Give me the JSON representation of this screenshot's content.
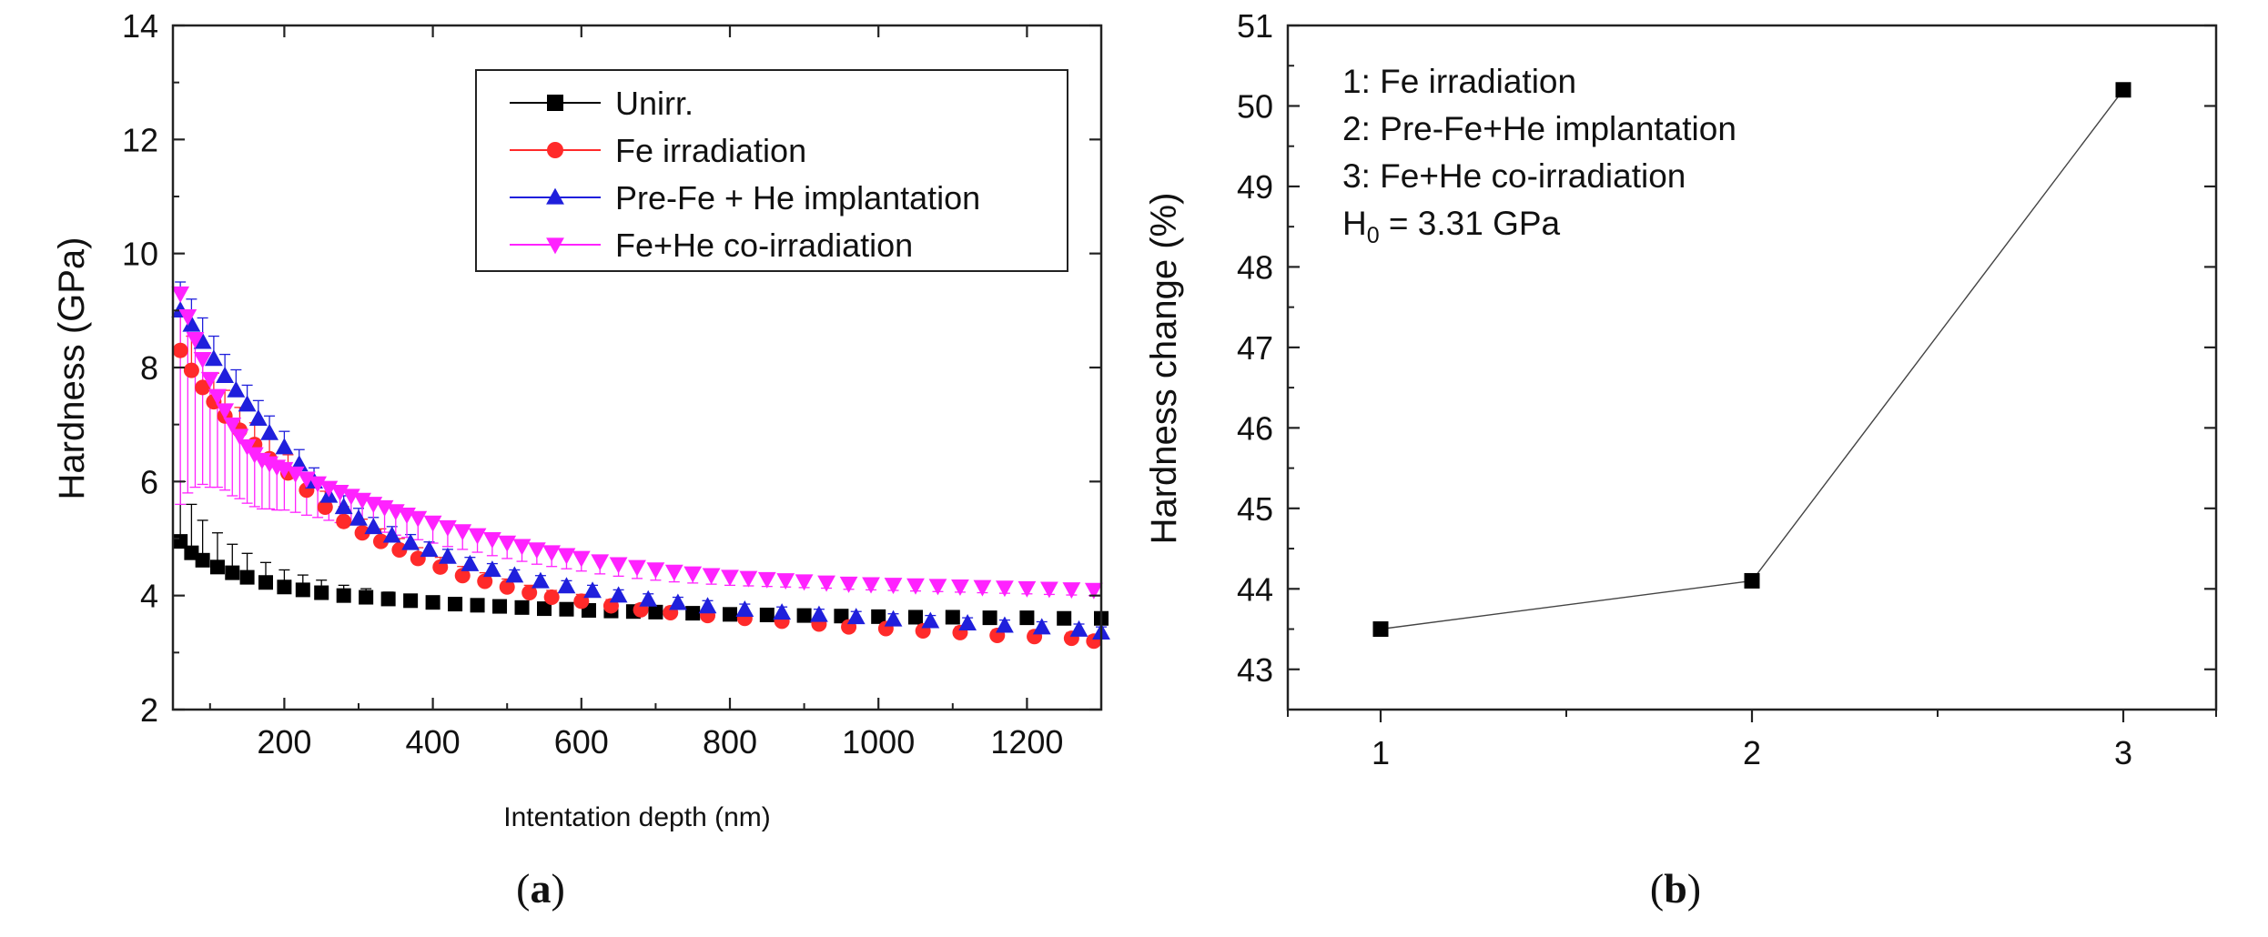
{
  "colors": {
    "unirr": "#000000",
    "fe": "#ff2a2a",
    "prefe": "#1f1fdc",
    "cofe": "#ff22ff",
    "axis": "#222222"
  },
  "captions": {
    "a_open": "(",
    "a_letter": "a",
    "a_close": ")",
    "b_open": "(",
    "b_letter": "b",
    "b_close": ")"
  },
  "chart_data": [
    {
      "id": "a",
      "type": "scatter",
      "title": "",
      "xlabel": "Intentation depth (nm)",
      "ylabel": "Hardness (GPa)",
      "xlim": [
        50,
        1300
      ],
      "ylim": [
        2,
        14
      ],
      "xticks": [
        200,
        400,
        600,
        800,
        1000,
        1200
      ],
      "yticks": [
        2,
        4,
        6,
        8,
        10,
        12,
        14
      ],
      "legend_position": "top-right",
      "series": [
        {
          "name": "Unirr.",
          "marker": "square",
          "color": "#000000",
          "x": [
            60,
            75,
            90,
            110,
            130,
            150,
            175,
            200,
            225,
            250,
            280,
            310,
            340,
            370,
            400,
            430,
            460,
            490,
            520,
            550,
            580,
            610,
            640,
            670,
            700,
            750,
            800,
            850,
            900,
            950,
            1000,
            1050,
            1100,
            1150,
            1200,
            1250,
            1300
          ],
          "y": [
            4.95,
            4.75,
            4.62,
            4.5,
            4.4,
            4.32,
            4.23,
            4.15,
            4.1,
            4.05,
            4.0,
            3.97,
            3.94,
            3.91,
            3.88,
            3.85,
            3.83,
            3.81,
            3.79,
            3.77,
            3.76,
            3.74,
            3.73,
            3.72,
            3.71,
            3.69,
            3.67,
            3.66,
            3.65,
            3.64,
            3.63,
            3.62,
            3.62,
            3.61,
            3.61,
            3.6,
            3.6
          ],
          "err": [
            1.05,
            0.85,
            0.7,
            0.6,
            0.5,
            0.42,
            0.35,
            0.3,
            0.26,
            0.22,
            0.18,
            0.15,
            0.12,
            0.1,
            0.09,
            0.08,
            0.07,
            0.06,
            0.05,
            0.05,
            0.04,
            0.04,
            0.03,
            0.03,
            0.03,
            0.02,
            0.02,
            0.02,
            0.02,
            0.02,
            0.02,
            0.02,
            0.02,
            0.02,
            0.02,
            0.02,
            0.02
          ]
        },
        {
          "name": "Fe irradiation",
          "marker": "circle",
          "color": "#ff2a2a",
          "x": [
            60,
            75,
            90,
            105,
            120,
            140,
            160,
            180,
            205,
            230,
            255,
            280,
            305,
            330,
            355,
            380,
            410,
            440,
            470,
            500,
            530,
            560,
            600,
            640,
            680,
            720,
            770,
            820,
            870,
            920,
            960,
            1010,
            1060,
            1110,
            1160,
            1210,
            1260,
            1290
          ],
          "y": [
            8.3,
            7.95,
            7.65,
            7.4,
            7.15,
            6.9,
            6.65,
            6.4,
            6.15,
            5.85,
            5.55,
            5.3,
            5.1,
            4.95,
            4.8,
            4.65,
            4.5,
            4.35,
            4.25,
            4.15,
            4.05,
            3.97,
            3.9,
            3.82,
            3.75,
            3.7,
            3.65,
            3.6,
            3.55,
            3.5,
            3.45,
            3.42,
            3.38,
            3.35,
            3.3,
            3.28,
            3.25,
            3.2
          ],
          "err": [
            0.7,
            0.6,
            0.55,
            0.5,
            0.45,
            0.4,
            0.38,
            0.35,
            0.32,
            0.3,
            0.28,
            0.26,
            0.24,
            0.22,
            0.2,
            0.19,
            0.17,
            0.16,
            0.15,
            0.14,
            0.13,
            0.12,
            0.12,
            0.11,
            0.1,
            0.1,
            0.1,
            0.1,
            0.1,
            0.1,
            0.1,
            0.1,
            0.1,
            0.1,
            0.1,
            0.1,
            0.1,
            0.1
          ]
        },
        {
          "name": "Pre-Fe + He implantation",
          "marker": "triangle-up",
          "color": "#1f1fdc",
          "x": [
            60,
            75,
            90,
            105,
            120,
            135,
            150,
            165,
            180,
            200,
            220,
            240,
            260,
            280,
            300,
            320,
            345,
            370,
            395,
            420,
            450,
            480,
            510,
            545,
            580,
            615,
            650,
            690,
            730,
            770,
            820,
            870,
            920,
            970,
            1020,
            1070,
            1120,
            1170,
            1220,
            1270,
            1300
          ],
          "y": [
            9.0,
            8.75,
            8.45,
            8.15,
            7.85,
            7.6,
            7.35,
            7.1,
            6.85,
            6.6,
            6.3,
            6.0,
            5.75,
            5.55,
            5.35,
            5.2,
            5.05,
            4.92,
            4.8,
            4.68,
            4.55,
            4.45,
            4.35,
            4.25,
            4.16,
            4.08,
            4.0,
            3.93,
            3.87,
            3.81,
            3.75,
            3.7,
            3.66,
            3.62,
            3.58,
            3.55,
            3.51,
            3.47,
            3.44,
            3.4,
            3.35
          ],
          "err": [
            0.5,
            0.45,
            0.42,
            0.4,
            0.38,
            0.36,
            0.34,
            0.32,
            0.3,
            0.28,
            0.26,
            0.24,
            0.22,
            0.2,
            0.18,
            0.17,
            0.16,
            0.15,
            0.14,
            0.13,
            0.12,
            0.11,
            0.1,
            0.1,
            0.1,
            0.1,
            0.1,
            0.1,
            0.1,
            0.1,
            0.1,
            0.1,
            0.1,
            0.1,
            0.1,
            0.1,
            0.1,
            0.1,
            0.1,
            0.1,
            0.1
          ]
        },
        {
          "name": "Fe+He co-irradiation",
          "marker": "triangle-down",
          "color": "#ff22ff",
          "x": [
            60,
            70,
            80,
            90,
            100,
            110,
            120,
            130,
            140,
            150,
            160,
            170,
            180,
            190,
            200,
            215,
            230,
            245,
            260,
            275,
            290,
            305,
            320,
            335,
            350,
            365,
            380,
            400,
            420,
            440,
            460,
            480,
            500,
            520,
            540,
            560,
            580,
            600,
            625,
            650,
            675,
            700,
            725,
            750,
            775,
            800,
            825,
            850,
            875,
            900,
            930,
            960,
            990,
            1020,
            1050,
            1080,
            1110,
            1140,
            1170,
            1200,
            1230,
            1260,
            1290
          ],
          "y": [
            9.3,
            8.9,
            8.5,
            8.15,
            7.8,
            7.5,
            7.25,
            7.0,
            6.8,
            6.62,
            6.48,
            6.38,
            6.32,
            6.26,
            6.22,
            6.14,
            6.05,
            5.97,
            5.89,
            5.82,
            5.75,
            5.68,
            5.61,
            5.55,
            5.48,
            5.42,
            5.36,
            5.28,
            5.2,
            5.13,
            5.06,
            4.99,
            4.93,
            4.87,
            4.81,
            4.76,
            4.71,
            4.66,
            4.6,
            4.55,
            4.5,
            4.46,
            4.42,
            4.39,
            4.36,
            4.33,
            4.31,
            4.29,
            4.27,
            4.25,
            4.23,
            4.21,
            4.2,
            4.19,
            4.18,
            4.17,
            4.16,
            4.15,
            4.14,
            4.13,
            4.12,
            4.11,
            4.1
          ],
          "err": [
            3.7,
            3.1,
            2.6,
            2.2,
            1.9,
            1.6,
            1.4,
            1.25,
            1.1,
            1.0,
            0.92,
            0.86,
            0.8,
            0.76,
            0.72,
            0.68,
            0.64,
            0.6,
            0.57,
            0.54,
            0.51,
            0.48,
            0.46,
            0.44,
            0.42,
            0.4,
            0.38,
            0.36,
            0.34,
            0.32,
            0.3,
            0.29,
            0.28,
            0.27,
            0.26,
            0.25,
            0.24,
            0.23,
            0.22,
            0.21,
            0.2,
            0.19,
            0.18,
            0.17,
            0.16,
            0.15,
            0.14,
            0.13,
            0.12,
            0.11,
            0.1,
            0.1,
            0.1,
            0.1,
            0.1,
            0.1,
            0.1,
            0.1,
            0.1,
            0.1,
            0.1,
            0.1,
            0.1
          ]
        }
      ]
    },
    {
      "id": "b",
      "type": "line",
      "title": "",
      "xlabel": "",
      "ylabel": "Hardness change (%)",
      "xlim": [
        0.75,
        3.25
      ],
      "ylim": [
        42.5,
        51
      ],
      "xticks": [
        1,
        2,
        3
      ],
      "yticks": [
        43,
        44,
        45,
        46,
        47,
        48,
        49,
        50,
        51
      ],
      "series": [
        {
          "name": "Hardness change",
          "marker": "square",
          "color": "#000000",
          "x": [
            1,
            2,
            3
          ],
          "y": [
            43.5,
            44.1,
            50.2
          ]
        }
      ],
      "annotations": [
        "1: Fe irradiation",
        "2: Pre-Fe+He implantation",
        "3: Fe+He co-irradiation"
      ],
      "h0": {
        "prefix": "H",
        "sub": "0",
        "suffix": " = 3.31 GPa"
      }
    }
  ]
}
